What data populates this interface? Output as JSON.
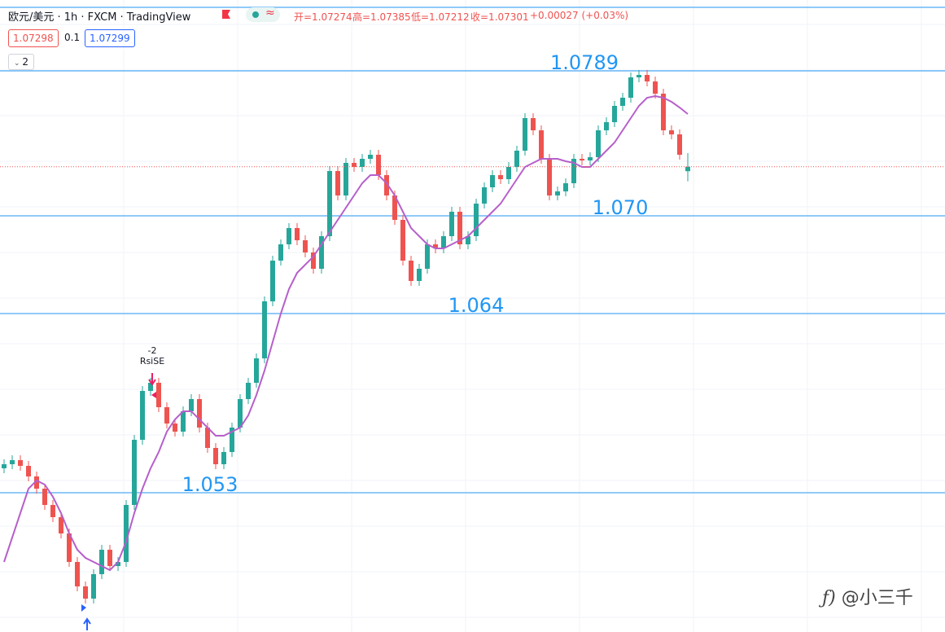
{
  "chart_data": {
    "type": "candlestick",
    "title": "欧元/美元 · 1h · FXCM · TradingView",
    "ohlc_labels": [
      "开=1.07274",
      "高=1.07385",
      "低=1.07212",
      "收=1.07301"
    ],
    "change": "+0.00027 (+0.03%)",
    "bid": 1.07298,
    "spread": 0.1,
    "ask": 1.07299,
    "pane_button": "2",
    "ylim": [
      1.04445,
      1.08325
    ],
    "up_color": "#26a69a",
    "down_color": "#ef5350",
    "open": [
      1.0545,
      1.05475,
      1.055,
      1.05465,
      1.054,
      1.05325,
      1.05225,
      1.0515,
      1.0505,
      1.04875,
      1.04725,
      1.0465,
      1.048,
      1.0495,
      1.0485,
      1.04875,
      1.05225,
      1.05625,
      1.05925,
      1.05975,
      1.05825,
      1.05725,
      1.05675,
      1.058,
      1.05875,
      1.057,
      1.05575,
      1.05475,
      1.0555,
      1.057,
      1.05875,
      1.05975,
      1.06125,
      1.06475,
      1.06725,
      1.06825,
      1.06925,
      1.0685,
      1.06775,
      1.06675,
      1.06875,
      1.07275,
      1.07125,
      1.07325,
      1.073,
      1.0735,
      1.07375,
      1.0725,
      1.07125,
      1.06975,
      1.06725,
      1.066,
      1.06675,
      1.06825,
      1.068,
      1.06875,
      1.07025,
      1.06825,
      1.06875,
      1.07075,
      1.07175,
      1.0725,
      1.07225,
      1.073,
      1.074,
      1.076,
      1.07525,
      1.0735,
      1.07125,
      1.0715,
      1.072,
      1.0735,
      1.0734,
      1.0736,
      1.07525,
      1.07575,
      1.07675,
      1.07725,
      1.0785,
      1.07865,
      1.07825,
      1.0775,
      1.07525,
      1.075,
      1.07274
    ],
    "high": [
      1.05505,
      1.0553,
      1.0553,
      1.05495,
      1.0543,
      1.05355,
      1.05255,
      1.0518,
      1.0508,
      1.04905,
      1.04755,
      1.0483,
      1.0498,
      1.0498,
      1.04905,
      1.05255,
      1.05655,
      1.05955,
      1.06005,
      1.06005,
      1.05855,
      1.05755,
      1.0583,
      1.05905,
      1.05905,
      1.0573,
      1.05605,
      1.0558,
      1.0573,
      1.05905,
      1.06005,
      1.06155,
      1.06505,
      1.06755,
      1.06855,
      1.06955,
      1.06955,
      1.0688,
      1.06805,
      1.06905,
      1.07305,
      1.07305,
      1.07355,
      1.07355,
      1.0738,
      1.07405,
      1.07405,
      1.0728,
      1.07155,
      1.07005,
      1.06755,
      1.06705,
      1.06855,
      1.06855,
      1.06905,
      1.07055,
      1.07055,
      1.06905,
      1.07105,
      1.07205,
      1.0728,
      1.0728,
      1.0733,
      1.0743,
      1.0763,
      1.0763,
      1.07555,
      1.0738,
      1.0718,
      1.0723,
      1.0738,
      1.0738,
      1.0739,
      1.07555,
      1.07605,
      1.07705,
      1.07755,
      1.0788,
      1.07895,
      1.07895,
      1.07855,
      1.0778,
      1.07555,
      1.0753,
      1.07385
    ],
    "low": [
      1.0542,
      1.05445,
      1.05435,
      1.0537,
      1.05295,
      1.05195,
      1.0512,
      1.0502,
      1.04845,
      1.04695,
      1.0462,
      1.0462,
      1.0477,
      1.0482,
      1.0482,
      1.04845,
      1.05195,
      1.05595,
      1.05895,
      1.05795,
      1.05695,
      1.05645,
      1.05645,
      1.0577,
      1.0567,
      1.05545,
      1.05445,
      1.05445,
      1.0552,
      1.0567,
      1.05845,
      1.05945,
      1.06095,
      1.06445,
      1.06695,
      1.06795,
      1.0682,
      1.06745,
      1.06645,
      1.06645,
      1.06845,
      1.07095,
      1.07095,
      1.0727,
      1.0727,
      1.0732,
      1.0722,
      1.07095,
      1.06945,
      1.06695,
      1.0657,
      1.0657,
      1.06645,
      1.0677,
      1.0677,
      1.06845,
      1.06795,
      1.06795,
      1.06845,
      1.07045,
      1.07145,
      1.07195,
      1.07195,
      1.0727,
      1.0737,
      1.07495,
      1.0732,
      1.07095,
      1.07095,
      1.0712,
      1.0717,
      1.0731,
      1.0731,
      1.0733,
      1.07495,
      1.07545,
      1.07645,
      1.07695,
      1.0782,
      1.07795,
      1.0772,
      1.07495,
      1.0747,
      1.07345,
      1.07212
    ],
    "close": [
      1.05475,
      1.055,
      1.05465,
      1.054,
      1.05325,
      1.05225,
      1.0515,
      1.0505,
      1.04875,
      1.04725,
      1.0465,
      1.048,
      1.0495,
      1.0485,
      1.04875,
      1.05225,
      1.05625,
      1.05925,
      1.05975,
      1.05825,
      1.05725,
      1.05675,
      1.058,
      1.05875,
      1.057,
      1.05575,
      1.05475,
      1.0555,
      1.057,
      1.05875,
      1.05975,
      1.06125,
      1.06475,
      1.06725,
      1.06825,
      1.06925,
      1.0685,
      1.06775,
      1.06675,
      1.06875,
      1.07275,
      1.07125,
      1.07325,
      1.073,
      1.0735,
      1.07375,
      1.0725,
      1.07125,
      1.06975,
      1.06725,
      1.066,
      1.06675,
      1.06825,
      1.068,
      1.06875,
      1.07025,
      1.06825,
      1.06875,
      1.07075,
      1.07175,
      1.0725,
      1.07225,
      1.073,
      1.074,
      1.076,
      1.07525,
      1.0735,
      1.07125,
      1.0715,
      1.072,
      1.0735,
      1.0734,
      1.0736,
      1.07525,
      1.07575,
      1.07675,
      1.07725,
      1.0785,
      1.07865,
      1.07825,
      1.0775,
      1.07525,
      1.075,
      1.07375,
      1.07301
    ],
    "ma": {
      "color": "#b65fca",
      "values": [
        1.04875,
        1.05025,
        1.05175,
        1.05325,
        1.05375,
        1.0535,
        1.05275,
        1.05175,
        1.0505,
        1.0495,
        1.049,
        1.04875,
        1.0485,
        1.04825,
        1.04875,
        1.05,
        1.05175,
        1.05325,
        1.0545,
        1.0555,
        1.05675,
        1.0575,
        1.058,
        1.058,
        1.0575,
        1.057,
        1.0565,
        1.0565,
        1.05675,
        1.057,
        1.05775,
        1.059,
        1.0605,
        1.06225,
        1.064,
        1.0655,
        1.0665,
        1.067,
        1.0675,
        1.06825,
        1.069,
        1.06975,
        1.0705,
        1.07125,
        1.072,
        1.0725,
        1.0725,
        1.072,
        1.07125,
        1.07025,
        1.06925,
        1.06875,
        1.06825,
        1.068,
        1.068,
        1.06825,
        1.0685,
        1.06875,
        1.06925,
        1.06975,
        1.07025,
        1.07075,
        1.0715,
        1.07225,
        1.073,
        1.07325,
        1.0735,
        1.0735,
        1.0735,
        1.07335,
        1.07325,
        1.073,
        1.073,
        1.0735,
        1.074,
        1.0745,
        1.07525,
        1.076,
        1.07675,
        1.07725,
        1.07735,
        1.07725,
        1.077,
        1.07665,
        1.07625
      ]
    },
    "level_color": "#2196f3",
    "levels": [
      1.0789,
      {
        "value": 1.07,
        "label": "1.070"
      },
      1.064,
      1.053
    ],
    "annotations": [
      "-2",
      "RsiSE"
    ]
  },
  "watermark": "@小三千"
}
